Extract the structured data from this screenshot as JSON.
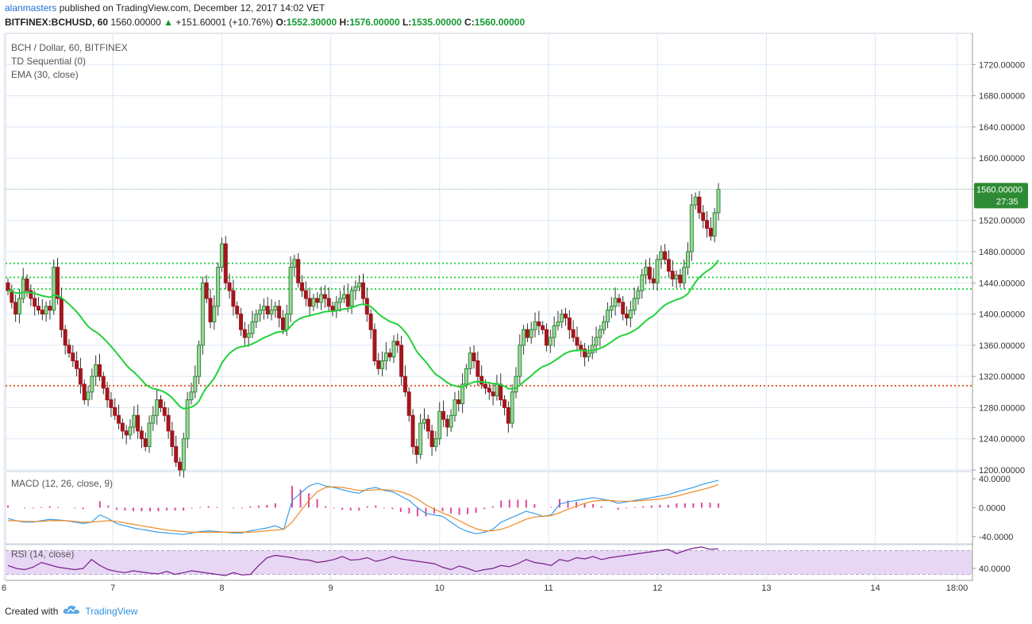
{
  "header": {
    "author": "alanmasters",
    "published_text": "published on TradingView.com, December 12, 2017 14:02 VET",
    "symbol": "BITFINEX:BCHUSD, 60",
    "last": "1560.00000",
    "change": "+151.60001 (+10.76%)",
    "open_label": "O:",
    "open": "1552.30000",
    "high_label": "H:",
    "high": "1576.00000",
    "low_label": "L:",
    "low": "1535.00000",
    "close_label": "C:",
    "close": "1560.00000"
  },
  "legend": {
    "main": "BCH / Dollar, 60, BITFINEX",
    "td": "TD Sequential (0)",
    "ema": "EMA (30, close)",
    "macd": "MACD (12, 26, close, 9)",
    "rsi": "RSI (14, close)"
  },
  "price_badge": {
    "value": "1560.00000",
    "countdown": "27:35"
  },
  "footer": {
    "created_with": "Created with",
    "brand": "TradingView"
  },
  "colors": {
    "up": "#2e8b35",
    "down": "#a3161e",
    "ema": "#22d13a",
    "macd": "#3a9ee8",
    "signal": "#f08a24",
    "hist": "#e0489a",
    "rsi": "#7a1f8c",
    "rsi_band": "#e7d7f4",
    "grid": "#dbe7f5",
    "green_level": "#2ad64a",
    "red_level": "#e85a2a"
  },
  "chart_data": [
    {
      "type": "candlestick",
      "title": "BCH / Dollar, 60, BITFINEX",
      "ylim": [
        1200,
        1760
      ],
      "yticks": [
        "1200.00000",
        "1240.00000",
        "1280.00000",
        "1320.00000",
        "1360.00000",
        "1400.00000",
        "1440.00000",
        "1480.00000",
        "1520.00000",
        "1560.00000",
        "1600.00000",
        "1640.00000",
        "1680.00000",
        "1720.00000"
      ],
      "xticks": [
        "6",
        "7",
        "8",
        "9",
        "10",
        "11",
        "12",
        "13",
        "14",
        "18:00"
      ],
      "x_start": 6.0,
      "x_step": 0.0417,
      "levels": [
        {
          "value": 1465,
          "style": "green-dotted"
        },
        {
          "value": 1447,
          "style": "green-dotted"
        },
        {
          "value": 1432,
          "style": "green-dotted"
        },
        {
          "value": 1308,
          "style": "red-dotted"
        }
      ],
      "closes": [
        1430,
        1415,
        1400,
        1420,
        1445,
        1430,
        1420,
        1410,
        1405,
        1400,
        1410,
        1405,
        1460,
        1420,
        1380,
        1360,
        1350,
        1340,
        1330,
        1310,
        1290,
        1300,
        1320,
        1335,
        1320,
        1305,
        1290,
        1280,
        1270,
        1260,
        1250,
        1245,
        1255,
        1270,
        1250,
        1240,
        1230,
        1260,
        1270,
        1290,
        1280,
        1270,
        1250,
        1230,
        1210,
        1200,
        1240,
        1290,
        1300,
        1320,
        1360,
        1440,
        1420,
        1390,
        1410,
        1460,
        1490,
        1440,
        1430,
        1410,
        1400,
        1380,
        1370,
        1375,
        1390,
        1400,
        1405,
        1410,
        1400,
        1405,
        1410,
        1395,
        1380,
        1400,
        1460,
        1470,
        1440,
        1430,
        1420,
        1410,
        1420,
        1415,
        1425,
        1420,
        1410,
        1405,
        1415,
        1420,
        1425,
        1410,
        1430,
        1435,
        1440,
        1420,
        1400,
        1380,
        1340,
        1330,
        1340,
        1350,
        1345,
        1365,
        1360,
        1320,
        1300,
        1270,
        1230,
        1220,
        1260,
        1265,
        1250,
        1230,
        1240,
        1275,
        1265,
        1255,
        1270,
        1290,
        1285,
        1310,
        1330,
        1350,
        1340,
        1320,
        1310,
        1305,
        1300,
        1295,
        1310,
        1290,
        1280,
        1260,
        1300,
        1320,
        1360,
        1380,
        1370,
        1380,
        1390,
        1385,
        1380,
        1360,
        1370,
        1385,
        1390,
        1400,
        1395,
        1380,
        1370,
        1360,
        1355,
        1345,
        1350,
        1360,
        1370,
        1380,
        1390,
        1405,
        1410,
        1420,
        1415,
        1400,
        1395,
        1405,
        1420,
        1430,
        1450,
        1460,
        1445,
        1440,
        1470,
        1480,
        1470,
        1455,
        1445,
        1450,
        1440,
        1460,
        1480,
        1540,
        1550,
        1530,
        1520,
        1510,
        1500,
        1530,
        1560
      ]
    },
    {
      "type": "line",
      "title": "MACD (12, 26, close, 9)",
      "ylim": [
        -50,
        50
      ],
      "yticks": [
        "40.0000",
        "0.0000",
        "-40.0000"
      ],
      "series": [
        {
          "values": [
            -15,
            -18,
            -20,
            -20,
            -18,
            -16,
            -17,
            -18,
            -20,
            -22,
            -20,
            -10,
            -15,
            -22,
            -25,
            -28,
            -30,
            -32,
            -34,
            -35,
            -36,
            -37,
            -35,
            -33,
            -32,
            -33,
            -34,
            -35,
            -35,
            -32,
            -30,
            -28,
            -25,
            -30,
            10,
            20,
            30,
            34,
            30,
            28,
            25,
            22,
            20,
            26,
            28,
            24,
            22,
            16,
            10,
            0,
            -8,
            -10,
            -12,
            -20,
            -28,
            -33,
            -36,
            -34,
            -30,
            -20,
            -15,
            -10,
            -5,
            -8,
            -12,
            -10,
            5,
            8,
            10,
            12,
            14,
            12,
            10,
            6,
            8,
            10,
            12,
            14,
            16,
            18,
            22,
            25,
            28,
            32,
            35,
            38
          ]
        },
        {
          "values": [
            -18,
            -18,
            -19,
            -19,
            -19,
            -18,
            -18,
            -18,
            -19,
            -20,
            -20,
            -19,
            -18,
            -19,
            -21,
            -23,
            -25,
            -27,
            -29,
            -31,
            -32,
            -33,
            -34,
            -34,
            -34,
            -34,
            -34,
            -34,
            -34,
            -34,
            -33,
            -32,
            -31,
            -30,
            -20,
            -5,
            10,
            22,
            28,
            29,
            28,
            26,
            24,
            24,
            25,
            25,
            24,
            22,
            18,
            12,
            4,
            -2,
            -7,
            -12,
            -18,
            -24,
            -29,
            -32,
            -32,
            -30,
            -26,
            -21,
            -16,
            -13,
            -12,
            -11,
            -7,
            -2,
            2,
            6,
            9,
            10,
            10,
            9,
            9,
            9,
            10,
            11,
            12,
            14,
            16,
            19,
            22,
            25,
            28,
            32
          ]
        },
        {
          "values": [
            3,
            0,
            -1,
            -1,
            1,
            2,
            1,
            0,
            -1,
            -2,
            0,
            9,
            3,
            -3,
            -4,
            -5,
            -5,
            -5,
            -5,
            -4,
            -4,
            -4,
            -1,
            1,
            2,
            1,
            0,
            -1,
            -1,
            2,
            3,
            4,
            6,
            0,
            30,
            25,
            20,
            12,
            2,
            -1,
            -3,
            -4,
            -4,
            2,
            3,
            -1,
            -2,
            -6,
            -8,
            -12,
            -12,
            -8,
            -5,
            -8,
            -10,
            -9,
            -7,
            -2,
            2,
            10,
            11,
            11,
            11,
            5,
            0,
            1,
            12,
            10,
            8,
            6,
            5,
            2,
            0,
            -3,
            -1,
            1,
            2,
            3,
            4,
            4,
            6,
            6,
            6,
            7,
            7,
            6
          ]
        }
      ]
    },
    {
      "type": "line",
      "title": "RSI (14, close)",
      "ylim": [
        20,
        80
      ],
      "yticks": [
        "40.0000"
      ],
      "series": [
        {
          "values": [
            45,
            40,
            38,
            42,
            50,
            46,
            42,
            40,
            38,
            40,
            55,
            45,
            38,
            35,
            33,
            36,
            34,
            32,
            31,
            35,
            30,
            33,
            36,
            34,
            32,
            30,
            28,
            33,
            29,
            30,
            45,
            58,
            62,
            60,
            58,
            55,
            54,
            50,
            52,
            55,
            60,
            54,
            55,
            58,
            52,
            55,
            60,
            56,
            54,
            52,
            50,
            48,
            42,
            38,
            44,
            40,
            35,
            38,
            40,
            45,
            43,
            48,
            55,
            50,
            48,
            45,
            55,
            52,
            58,
            56,
            60,
            55,
            58,
            60,
            62,
            64,
            66,
            68,
            70,
            72,
            65,
            70,
            74,
            76,
            72,
            73
          ]
        }
      ]
    }
  ]
}
